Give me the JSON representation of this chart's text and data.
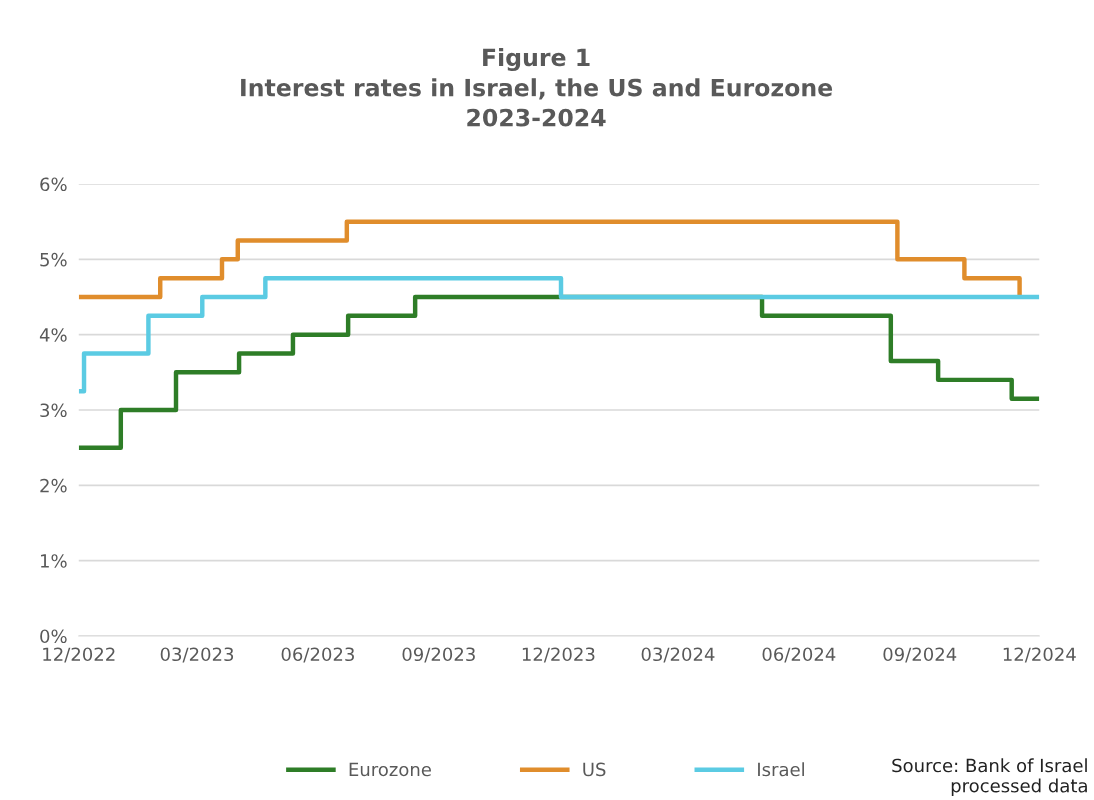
{
  "chart_data": {
    "type": "step",
    "title": "Figure 1\nInterest rates in Israel, the US and Eurozone\n2023-2024",
    "series": [
      {
        "name": "Eurozone",
        "color": "#2e7d27",
        "x": [
          "2022-12-01",
          "2023-01-02",
          "2023-02-13",
          "2023-04-02",
          "2023-05-13",
          "2023-06-24",
          "2023-08-14",
          "2024-05-04",
          "2024-08-10",
          "2024-09-15",
          "2024-11-10",
          "2024-12-01"
        ],
        "values": [
          2.5,
          3.0,
          3.5,
          3.75,
          4.0,
          4.25,
          4.5,
          4.25,
          3.65,
          3.4,
          3.15,
          3.15
        ]
      },
      {
        "name": "US",
        "color": "#e08d2c",
        "x": [
          "2022-12-01",
          "2023-02-01",
          "2023-03-20",
          "2023-04-01",
          "2023-06-23",
          "2024-08-15",
          "2024-10-05",
          "2024-11-16"
        ],
        "values": [
          4.5,
          4.75,
          5.0,
          5.25,
          5.5,
          5.0,
          4.75,
          4.5
        ]
      },
      {
        "name": "Israel",
        "color": "#5bcbe3",
        "x": [
          "2022-12-01",
          "2022-12-05",
          "2023-01-23",
          "2023-03-05",
          "2023-04-22",
          "2023-12-03",
          "2024-12-01"
        ],
        "values": [
          3.25,
          3.75,
          4.25,
          4.5,
          4.75,
          4.5,
          4.5
        ]
      }
    ],
    "xlim": [
      "2022-12-01",
      "2024-12-01"
    ],
    "xticks": [
      {
        "value": "2022-12-01",
        "label": "12/2022"
      },
      {
        "value": "2023-03-01",
        "label": "03/2023"
      },
      {
        "value": "2023-06-01",
        "label": "06/2023"
      },
      {
        "value": "2023-09-01",
        "label": "09/2023"
      },
      {
        "value": "2023-12-01",
        "label": "12/2023"
      },
      {
        "value": "2024-03-01",
        "label": "03/2024"
      },
      {
        "value": "2024-06-01",
        "label": "06/2024"
      },
      {
        "value": "2024-09-01",
        "label": "09/2024"
      },
      {
        "value": "2024-12-01",
        "label": "12/2024"
      }
    ],
    "ylim": [
      0,
      6
    ],
    "yticks": [
      {
        "value": 0,
        "label": "0%"
      },
      {
        "value": 1,
        "label": "1%"
      },
      {
        "value": 2,
        "label": "2%"
      },
      {
        "value": 3,
        "label": "3%"
      },
      {
        "value": 4,
        "label": "4%"
      },
      {
        "value": 5,
        "label": "5%"
      },
      {
        "value": 6,
        "label": "6%"
      }
    ],
    "grid": "y",
    "legend": "bottom",
    "annotations": [
      "Source: Bank of Israel\nprocessed data"
    ]
  }
}
